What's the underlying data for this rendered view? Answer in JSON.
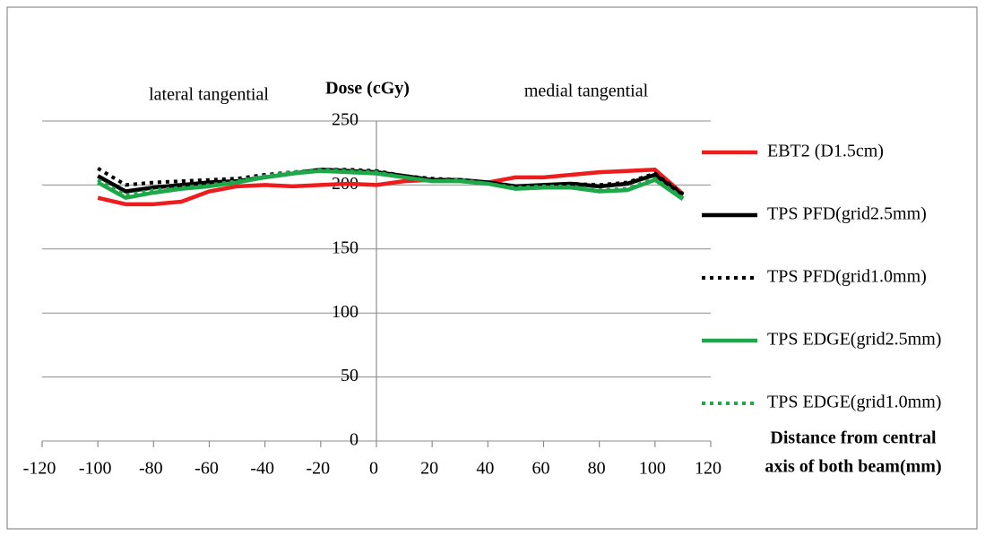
{
  "chart_data": {
    "type": "line",
    "y_label": "Dose (cGy)",
    "x_label": [
      "Distance from central",
      "axis of both beam(mm)"
    ],
    "annotations": [
      "lateral tangential",
      "medial tangential"
    ],
    "x": [
      -100,
      -90,
      -80,
      -70,
      -60,
      -50,
      -40,
      -30,
      -20,
      -10,
      0,
      10,
      20,
      30,
      40,
      50,
      60,
      70,
      80,
      90,
      100,
      110
    ],
    "series": [
      {
        "name": "EBT2 (D1.5cm)",
        "color": "#ee1c1c",
        "style": "solid",
        "values": [
          190,
          185,
          185,
          187,
          195,
          199,
          200,
          199,
          200,
          201,
          200,
          203,
          204,
          203,
          202,
          206,
          206,
          208,
          210,
          211,
          212,
          193
        ]
      },
      {
        "name": "TPS PFD(grid2.5mm)",
        "color": "#000000",
        "style": "solid",
        "values": [
          207,
          195,
          198,
          200,
          202,
          203,
          206,
          209,
          212,
          211,
          210,
          207,
          204,
          204,
          202,
          199,
          200,
          201,
          199,
          201,
          208,
          192
        ]
      },
      {
        "name": "TPS PFD(grid1.0mm)",
        "color": "#000000",
        "style": "dotted",
        "values": [
          213,
          200,
          202,
          203,
          204,
          205,
          208,
          210,
          212,
          212,
          211,
          207,
          205,
          204,
          202,
          199,
          200,
          201,
          200,
          202,
          209,
          193
        ]
      },
      {
        "name": "TPS EDGE(grid2.5mm)",
        "color": "#1fa84a",
        "style": "solid",
        "values": [
          202,
          190,
          194,
          197,
          199,
          202,
          206,
          209,
          211,
          210,
          209,
          206,
          203,
          203,
          201,
          197,
          198,
          198,
          195,
          196,
          204,
          189
        ]
      },
      {
        "name": "TPS EDGE(grid1.0mm)",
        "color": "#1fa84a",
        "style": "dotted",
        "values": [
          204,
          192,
          196,
          198,
          200,
          203,
          207,
          210,
          212,
          211,
          210,
          206,
          203,
          204,
          201,
          198,
          199,
          199,
          196,
          197,
          205,
          190
        ]
      }
    ],
    "xlim": [
      -120,
      120
    ],
    "xticks": [
      -120,
      -100,
      -80,
      -60,
      -40,
      -20,
      0,
      20,
      40,
      60,
      80,
      100,
      120
    ],
    "ylim": [
      0,
      250
    ],
    "yticks": [
      0,
      50,
      100,
      150,
      200,
      250
    ],
    "grid": true,
    "legend": "right"
  }
}
